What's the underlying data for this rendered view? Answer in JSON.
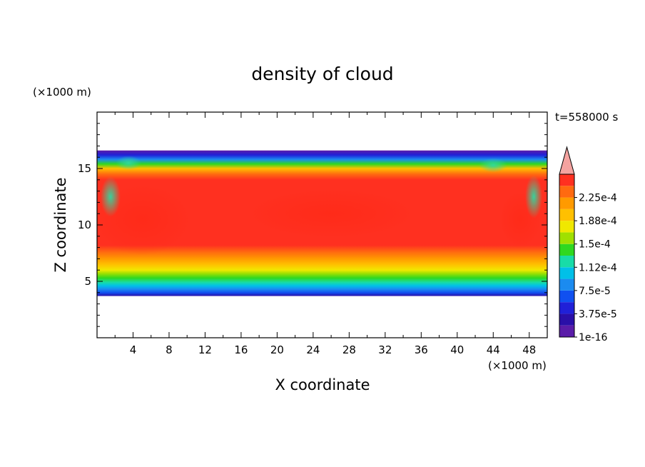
{
  "chart_data": {
    "type": "heatmap",
    "title": "density of cloud",
    "xlabel": "X coordinate",
    "ylabel": "Z coordinate",
    "x_unit": "(×1000 m)",
    "y_unit": "(×1000 m)",
    "time_label": "t=558000 s",
    "xlim": [
      0,
      50
    ],
    "ylim": [
      0,
      20
    ],
    "x_ticks": [
      4,
      8,
      12,
      16,
      20,
      24,
      28,
      32,
      36,
      40,
      44,
      48
    ],
    "y_ticks": [
      5,
      10,
      15
    ],
    "colorbar": {
      "labels": [
        "2.25e-4",
        "1.88e-4",
        "1.5e-4",
        "1.12e-4",
        "7.5e-5",
        "3.75e-5",
        "1e-16"
      ],
      "levels": [
        1e-16,
        1.875e-05,
        3.75e-05,
        5.625e-05,
        7.5e-05,
        9.375e-05,
        0.0001125,
        0.00013125,
        0.00015,
        0.00016875,
        0.0001875,
        0.00020625,
        0.000225,
        0.00024375
      ],
      "colors": [
        "#5a1ca8",
        "#2a0fa8",
        "#2020d8",
        "#1050f0",
        "#1b8bf0",
        "#00c0e8",
        "#18dca8",
        "#30d820",
        "#a0e000",
        "#f0e800",
        "#ffc000",
        "#ff9a00",
        "#ff6a10",
        "#ff3020"
      ],
      "extend_color": "#f4a3a0"
    },
    "field_summary": {
      "cloud_bottom_z": 3.7,
      "cloud_top_z": 16.6,
      "peak_value": 0.00024,
      "core_z_range": [
        8,
        14
      ]
    }
  }
}
